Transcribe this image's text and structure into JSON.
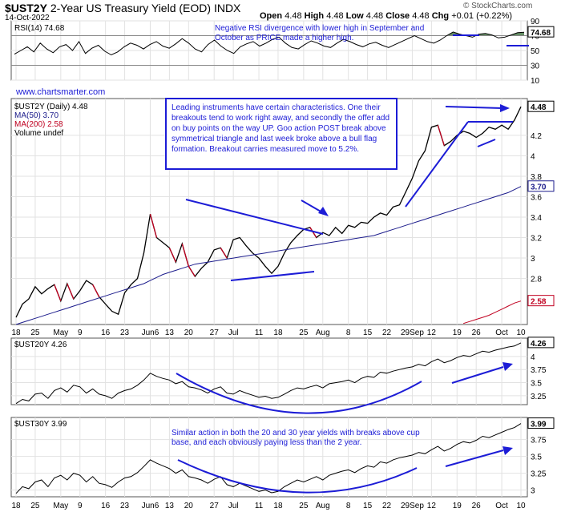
{
  "header": {
    "symbol": "$UST2Y",
    "name": "2-Year US Treasury Yield (EOD)",
    "exchange": "INDX",
    "date": "14-Oct-2022",
    "open_label": "Open",
    "open": "4.48",
    "high_label": "High",
    "high": "4.48",
    "low_label": "Low",
    "low": "4.48",
    "close_label": "Close",
    "close": "4.48",
    "chg_label": "Chg",
    "chg": "+0.01 (+0.22%)",
    "copyright": "© StockCharts.com",
    "website": "www.chartsmarter.com"
  },
  "annotations": {
    "rsi_note": "Negative RSI divergence with lower high in September and October as PRICE made a higher high.",
    "box_note": "Leading instruments have certain characteristics. One their breakouts tend to work right away, and secondly the offer add on buy points on the way UP. Goo action POST break above symmetrical triangle and last week broke above a bull flag formation. Breakout carries measured move to 5.2%.",
    "cup_note": "Similar action in both the 20 and 30 year yields with breaks above cup base, and each obviously paying less than the 2 year."
  },
  "chart_data": [
    {
      "type": "line",
      "panel": "RSI",
      "series": [
        {
          "name": "RSI(14)",
          "last": 74.68
        }
      ],
      "ylim": [
        10,
        90
      ],
      "yticks": [
        10,
        30,
        50,
        70,
        90
      ],
      "legend": "RSI(14) 74.68",
      "last_label": "74.68",
      "values": [
        45,
        50,
        55,
        48,
        60,
        52,
        47,
        55,
        58,
        50,
        62,
        46,
        53,
        57,
        49,
        44,
        48,
        55,
        60,
        57,
        52,
        58,
        62,
        56,
        53,
        59,
        66,
        60,
        52,
        48,
        58,
        64,
        56,
        50,
        46,
        55,
        59,
        62,
        56,
        60,
        65,
        68,
        60,
        54,
        52,
        58,
        63,
        60,
        56,
        54,
        60,
        65,
        62,
        58,
        55,
        59,
        61,
        57,
        54,
        58,
        62,
        66,
        70,
        66,
        62,
        60,
        64,
        70,
        75,
        72,
        70,
        68,
        72,
        73,
        71,
        67,
        68,
        71,
        74,
        74.68
      ],
      "overbought": 70,
      "oversold": 30
    },
    {
      "type": "line",
      "panel": "price",
      "series": [
        {
          "name": "$UST2Y (Daily)",
          "last": 4.48,
          "color": "#000000"
        },
        {
          "name": "MA(50)",
          "last": 3.7,
          "color": "#1c1c8c"
        },
        {
          "name": "MA(200)",
          "last": 2.58,
          "color": "#c00020"
        }
      ],
      "extra_legend": "Volume undef",
      "legend": [
        "$UST2Y (Daily) 4.48",
        "MA(50) 3.70",
        "MA(200) 2.58",
        "Volume undef"
      ],
      "ylim": [
        2.35,
        4.56
      ],
      "yticks": [
        2.8,
        3.0,
        3.2,
        3.4,
        3.6,
        3.8,
        4.0,
        4.2
      ],
      "last_labels": [
        "4.48",
        "3.70",
        "2.58"
      ],
      "price": [
        2.42,
        2.55,
        2.6,
        2.72,
        2.65,
        2.7,
        2.74,
        2.58,
        2.75,
        2.6,
        2.68,
        2.78,
        2.74,
        2.62,
        2.55,
        2.48,
        2.45,
        2.66,
        2.74,
        2.8,
        3.05,
        3.43,
        3.2,
        3.15,
        3.1,
        2.96,
        3.14,
        2.92,
        2.82,
        2.9,
        2.96,
        3.08,
        3.1,
        3.0,
        3.18,
        3.2,
        3.12,
        3.05,
        3.0,
        2.92,
        2.85,
        2.92,
        3.05,
        3.15,
        3.22,
        3.28,
        3.3,
        3.2,
        3.25,
        3.22,
        3.3,
        3.24,
        3.32,
        3.3,
        3.35,
        3.34,
        3.4,
        3.44,
        3.42,
        3.5,
        3.52,
        3.65,
        3.78,
        3.95,
        4.05,
        4.28,
        4.3,
        4.1,
        4.14,
        4.2,
        4.24,
        4.22,
        4.18,
        4.22,
        4.28,
        4.26,
        4.3,
        4.26,
        4.35,
        4.48
      ],
      "ma50": [
        2.35,
        2.37,
        2.39,
        2.41,
        2.43,
        2.45,
        2.47,
        2.49,
        2.51,
        2.53,
        2.55,
        2.57,
        2.59,
        2.61,
        2.63,
        2.65,
        2.67,
        2.69,
        2.71,
        2.73,
        2.75,
        2.78,
        2.81,
        2.84,
        2.86,
        2.88,
        2.9,
        2.92,
        2.94,
        2.95,
        2.96,
        2.97,
        2.98,
        2.99,
        3.0,
        3.01,
        3.02,
        3.03,
        3.04,
        3.05,
        3.06,
        3.07,
        3.08,
        3.09,
        3.1,
        3.11,
        3.12,
        3.13,
        3.14,
        3.15,
        3.16,
        3.17,
        3.18,
        3.19,
        3.2,
        3.21,
        3.22,
        3.24,
        3.26,
        3.28,
        3.3,
        3.32,
        3.34,
        3.36,
        3.38,
        3.4,
        3.42,
        3.44,
        3.46,
        3.48,
        3.5,
        3.52,
        3.54,
        3.56,
        3.58,
        3.6,
        3.62,
        3.64,
        3.67,
        3.7
      ],
      "ma200_start_index": 70,
      "ma200": [
        2.36,
        2.38,
        2.4,
        2.42,
        2.44,
        2.47,
        2.5,
        2.53,
        2.56,
        2.58
      ],
      "x_tick_labels": [
        "18",
        "25",
        "May",
        "9",
        "16",
        "23",
        "Jun6",
        "13",
        "20",
        "27",
        "Jul",
        "11",
        "18",
        "25",
        "Aug",
        "8",
        "15",
        "22",
        "29Sep",
        "12",
        "19",
        "26",
        "Oct",
        "10"
      ]
    },
    {
      "type": "line",
      "panel": "UST20Y",
      "series": [
        {
          "name": "$UST20Y",
          "last": 4.26
        }
      ],
      "legend": "$UST20Y 4.26",
      "ylim": [
        3.08,
        4.35
      ],
      "yticks": [
        3.25,
        3.5,
        3.75,
        4.0
      ],
      "last_label": "4.26",
      "values": [
        3.1,
        3.18,
        3.15,
        3.28,
        3.3,
        3.2,
        3.35,
        3.4,
        3.32,
        3.45,
        3.42,
        3.3,
        3.38,
        3.28,
        3.25,
        3.2,
        3.3,
        3.35,
        3.38,
        3.45,
        3.55,
        3.68,
        3.62,
        3.58,
        3.55,
        3.48,
        3.52,
        3.42,
        3.4,
        3.36,
        3.3,
        3.38,
        3.42,
        3.3,
        3.28,
        3.35,
        3.3,
        3.26,
        3.22,
        3.24,
        3.2,
        3.22,
        3.28,
        3.35,
        3.4,
        3.38,
        3.42,
        3.45,
        3.4,
        3.48,
        3.5,
        3.52,
        3.55,
        3.5,
        3.58,
        3.62,
        3.6,
        3.7,
        3.68,
        3.72,
        3.75,
        3.78,
        3.8,
        3.85,
        3.82,
        3.9,
        3.95,
        3.88,
        3.92,
        3.98,
        4.02,
        4.0,
        4.05,
        4.1,
        4.08,
        4.12,
        4.15,
        4.18,
        4.2,
        4.26
      ]
    },
    {
      "type": "line",
      "panel": "UST30Y",
      "series": [
        {
          "name": "$UST30Y",
          "last": 3.99
        }
      ],
      "legend": "$UST30Y 3.99",
      "ylim": [
        2.9,
        4.08
      ],
      "yticks": [
        3.0,
        3.25,
        3.5,
        3.75
      ],
      "last_label": "3.99",
      "values": [
        2.95,
        3.05,
        3.02,
        3.12,
        3.15,
        3.05,
        3.18,
        3.22,
        3.15,
        3.25,
        3.22,
        3.12,
        3.2,
        3.1,
        3.08,
        3.04,
        3.12,
        3.18,
        3.2,
        3.26,
        3.35,
        3.45,
        3.4,
        3.36,
        3.32,
        3.25,
        3.3,
        3.2,
        3.18,
        3.15,
        3.1,
        3.16,
        3.2,
        3.08,
        3.05,
        3.1,
        3.06,
        3.02,
        2.98,
        3.0,
        2.96,
        2.98,
        3.05,
        3.1,
        3.15,
        3.12,
        3.16,
        3.2,
        3.15,
        3.22,
        3.25,
        3.28,
        3.3,
        3.26,
        3.32,
        3.36,
        3.34,
        3.42,
        3.4,
        3.45,
        3.48,
        3.5,
        3.52,
        3.56,
        3.54,
        3.6,
        3.65,
        3.58,
        3.62,
        3.68,
        3.72,
        3.7,
        3.74,
        3.8,
        3.78,
        3.82,
        3.86,
        3.9,
        3.93,
        3.99
      ],
      "x_tick_labels": [
        "18",
        "25",
        "May",
        "9",
        "16",
        "23",
        "Jun6",
        "13",
        "20",
        "27",
        "Jul",
        "11",
        "18",
        "25",
        "Aug",
        "8",
        "15",
        "22",
        "29Sep",
        "12",
        "19",
        "26",
        "Oct",
        "10"
      ]
    }
  ],
  "colors": {
    "annotation": "#1c1cd6",
    "price": "#000000",
    "ma50": "#1c1c8c",
    "ma200": "#c00020",
    "rsi_fill": "#4a7a4a"
  }
}
